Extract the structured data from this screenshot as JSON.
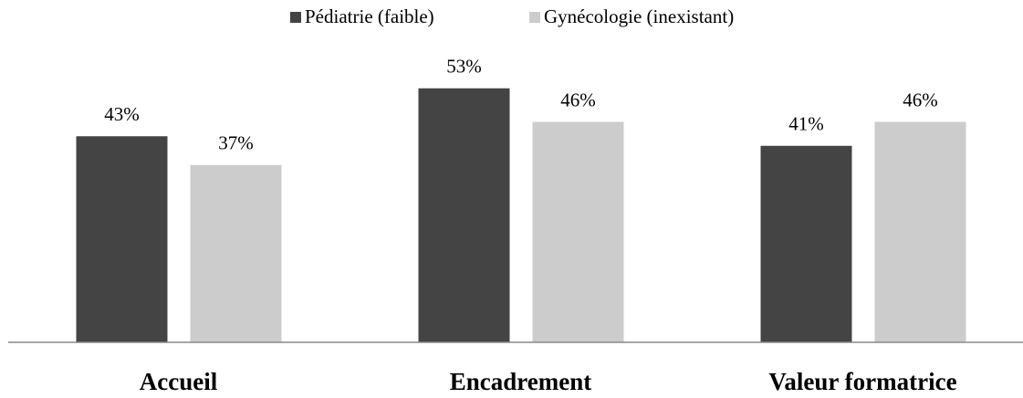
{
  "chart_data": {
    "type": "bar",
    "categories": [
      "Accueil",
      "Encadrement",
      "Valeur formatrice"
    ],
    "series": [
      {
        "name": "Pédiatrie (faible)",
        "color": "#444444",
        "values": [
          43,
          53,
          41
        ],
        "value_labels": [
          "43%",
          "53%",
          "41%"
        ]
      },
      {
        "name": "Gynécologie (inexistant)",
        "color": "#cccccc",
        "values": [
          37,
          46,
          46
        ],
        "value_labels": [
          "37%",
          "46%",
          "46%"
        ]
      }
    ],
    "ylim": [
      0,
      60
    ],
    "legend": "top"
  }
}
